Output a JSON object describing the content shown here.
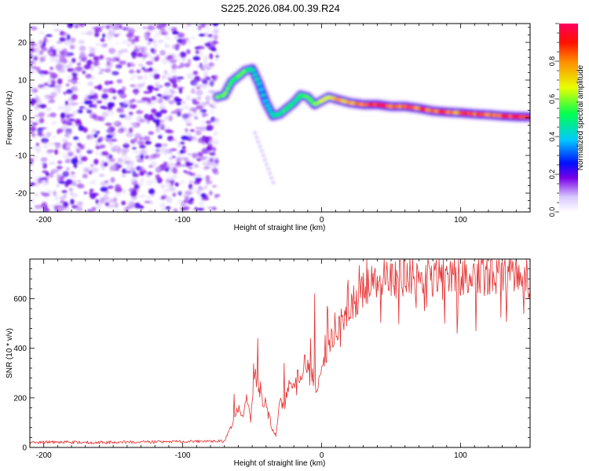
{
  "title": "S225.2026.084.00.39.R24",
  "chart_data": [
    {
      "type": "heatmap",
      "name": "spectrogram",
      "xlabel": "Height of straight line (km)",
      "ylabel": "Frequency (Hz)",
      "xlim": [
        -210,
        150
      ],
      "ylim": [
        -25,
        25
      ],
      "xticks": [
        -200,
        -100,
        0,
        100
      ],
      "yticks": [
        -20,
        -10,
        0,
        10,
        20
      ],
      "colorbar": {
        "label": "Normalized spectral amplitude",
        "range": [
          0,
          1
        ],
        "ticks": [
          0.0,
          0.2,
          0.4,
          0.6,
          0.8
        ],
        "colors": [
          "#e8e8ff",
          "#6a00e0",
          "#0000ff",
          "#00d0ff",
          "#00ff40",
          "#f0ff00",
          "#ff8000",
          "#ff0000",
          "#ff0060"
        ]
      },
      "ridge": {
        "x": [
          -75,
          -70,
          -65,
          -60,
          -55,
          -50,
          -45,
          -40,
          -35,
          -30,
          -25,
          -20,
          -15,
          -10,
          -5,
          0,
          5,
          10,
          20,
          30,
          40,
          50,
          60,
          70,
          80,
          90,
          100,
          110,
          120,
          130,
          140,
          150
        ],
        "freq": [
          5.5,
          6.0,
          9.5,
          11.0,
          12.5,
          13.0,
          9.0,
          4.0,
          0.5,
          1.0,
          2.5,
          4.0,
          6.0,
          5.5,
          3.5,
          4.5,
          5.5,
          5.0,
          4.0,
          3.5,
          3.5,
          3.0,
          3.0,
          2.5,
          1.8,
          1.5,
          1.3,
          1.0,
          0.8,
          0.5,
          0.3,
          0.2
        ],
        "amplitude": [
          0.6,
          0.65,
          0.6,
          0.55,
          0.6,
          0.5,
          0.45,
          0.4,
          0.45,
          0.5,
          0.55,
          0.5,
          0.6,
          0.55,
          0.6,
          0.65,
          0.7,
          0.75,
          0.8,
          0.85,
          0.95,
          0.9,
          0.85,
          0.85,
          0.9,
          0.9,
          0.85,
          0.9,
          0.85,
          0.9,
          0.95,
          0.9
        ]
      },
      "noise_region": {
        "x": [
          -210,
          -75
        ],
        "amplitude_max": 0.3
      }
    },
    {
      "type": "line",
      "name": "snr",
      "xlabel": "Height of straight line (km)",
      "ylabel": "SNR (10 * v/v)",
      "xlim": [
        -210,
        150
      ],
      "ylim": [
        0,
        760
      ],
      "xticks": [
        -200,
        -100,
        0,
        100
      ],
      "yticks": [
        0,
        200,
        400,
        600
      ],
      "color": "#e53030",
      "series": [
        {
          "name": "SNR",
          "x": [
            -210,
            -190,
            -170,
            -150,
            -130,
            -110,
            -90,
            -70,
            -63,
            -60,
            -57,
            -54,
            -51,
            -48,
            -45,
            -42,
            -39,
            -36,
            -33,
            -30,
            -27,
            -24,
            -21,
            -18,
            -15,
            -12,
            -9,
            -6,
            -3,
            0,
            3,
            6,
            9,
            12,
            15,
            20,
            25,
            30,
            35,
            40,
            50,
            60,
            70,
            80,
            90,
            100,
            110,
            120,
            130,
            140,
            150
          ],
          "y": [
            20,
            22,
            20,
            21,
            22,
            23,
            24,
            25,
            110,
            160,
            120,
            200,
            130,
            300,
            230,
            180,
            160,
            80,
            40,
            200,
            150,
            250,
            240,
            300,
            280,
            350,
            310,
            290,
            230,
            320,
            380,
            420,
            460,
            480,
            510,
            560,
            600,
            630,
            650,
            670,
            680,
            690,
            690,
            690,
            690,
            690,
            700,
            690,
            700,
            690,
            680
          ]
        }
      ],
      "spikes": [
        {
          "x": -63,
          "y": 215
        },
        {
          "x": -46,
          "y": 440
        },
        {
          "x": -27,
          "y": 340
        },
        {
          "x": -8,
          "y": 440
        },
        {
          "x": -5,
          "y": 620
        },
        {
          "x": 4,
          "y": 570
        }
      ]
    }
  ]
}
